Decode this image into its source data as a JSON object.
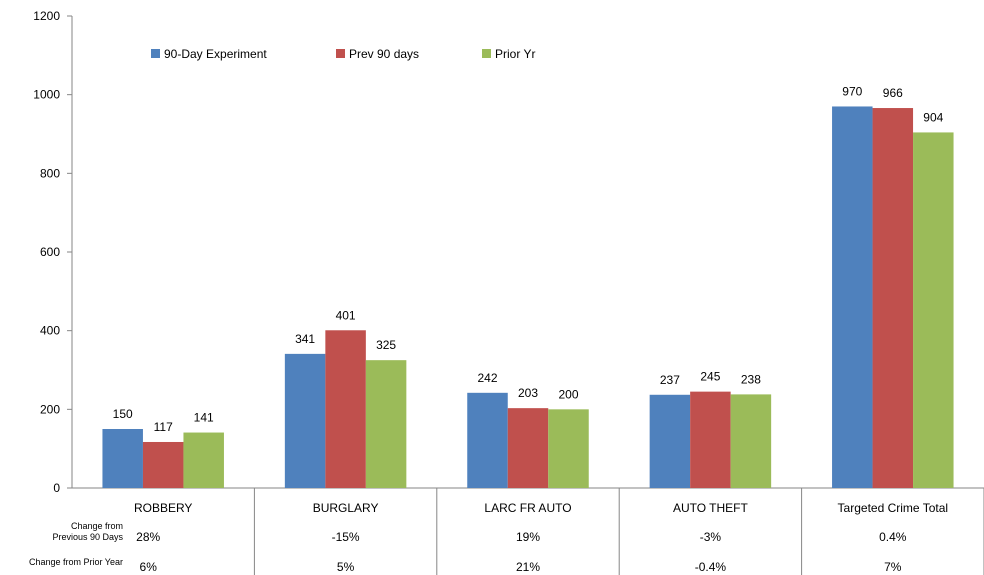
{
  "chart_data": {
    "type": "bar",
    "title": "",
    "xlabel": "",
    "ylabel": "",
    "ylim": [
      0,
      1200
    ],
    "yticks": [
      0,
      200,
      400,
      600,
      800,
      1000,
      1200
    ],
    "grid": false,
    "legend_position": "top-left",
    "categories": [
      "ROBBERY",
      "BURGLARY",
      "LARC FR AUTO",
      "AUTO THEFT",
      "Targeted Crime Total"
    ],
    "series": [
      {
        "name": "90-Day Experiment",
        "color": "#4f81bd",
        "values": [
          150,
          341,
          242,
          237,
          970
        ]
      },
      {
        "name": "Prev 90 days",
        "color": "#c0504d",
        "values": [
          117,
          401,
          203,
          245,
          966
        ]
      },
      {
        "name": "Prior Yr",
        "color": "#9bbb59",
        "values": [
          141,
          325,
          200,
          238,
          904
        ]
      }
    ],
    "table_rows": [
      {
        "label_lines": [
          "Change from",
          "Previous 90 Days"
        ],
        "values": [
          "28%",
          "-15%",
          "19%",
          "-3%",
          "0.4%"
        ]
      },
      {
        "label_lines": [
          "Change from Prior Year"
        ],
        "values": [
          "6%",
          "5%",
          "21%",
          "-0.4%",
          "7%"
        ]
      }
    ]
  }
}
